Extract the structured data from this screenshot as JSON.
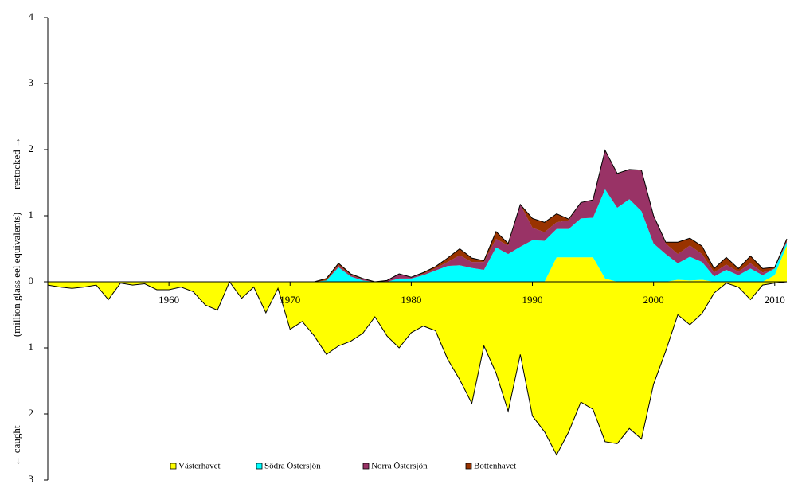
{
  "chart_data": {
    "type": "stacked-area",
    "ylabel": [
      "← caught",
      "(million glass eel equivalents)",
      "restocked →"
    ],
    "x": [
      1950,
      1951,
      1952,
      1953,
      1954,
      1955,
      1956,
      1957,
      1958,
      1959,
      1960,
      1961,
      1962,
      1963,
      1964,
      1965,
      1966,
      1967,
      1968,
      1969,
      1970,
      1971,
      1972,
      1973,
      1974,
      1975,
      1976,
      1977,
      1978,
      1979,
      1980,
      1981,
      1982,
      1983,
      1984,
      1985,
      1986,
      1987,
      1988,
      1989,
      1990,
      1991,
      1992,
      1993,
      1994,
      1995,
      1996,
      1997,
      1998,
      1999,
      2000,
      2001,
      2002,
      2003,
      2004,
      2005,
      2006,
      2007,
      2008,
      2009,
      2010,
      2011
    ],
    "xlim": [
      1950,
      2011
    ],
    "xticks": [
      1960,
      1970,
      1980,
      1990,
      2000,
      2010
    ],
    "ylim": [
      -3,
      4
    ],
    "yticks": [
      {
        "value": -3,
        "label": "3"
      },
      {
        "value": -2,
        "label": "2"
      },
      {
        "value": -1,
        "label": "1"
      },
      0,
      1,
      2,
      3,
      4
    ],
    "negative_tick_label_color": "#cc0000",
    "series": [
      {
        "name": "Västerhavet",
        "color": "#ffff00",
        "values": [
          0,
          0,
          0,
          0,
          0,
          0,
          0,
          0,
          0,
          0,
          0,
          0,
          0,
          0,
          0,
          0,
          0,
          0,
          0,
          0,
          0,
          0,
          0,
          0,
          0,
          0,
          0,
          0,
          0,
          0,
          0,
          0,
          0,
          0,
          0,
          0,
          0,
          0,
          0,
          0,
          0,
          0,
          0.37,
          0.37,
          0.37,
          0.37,
          0.05,
          0,
          0,
          0,
          0,
          0,
          0.03,
          0.02,
          0.03,
          0,
          0,
          0,
          0,
          0,
          0.1,
          0.55
        ]
      },
      {
        "name": "Södra Östersjön",
        "color": "#00ffff",
        "values": [
          0,
          0,
          0,
          0,
          0,
          0,
          0,
          0,
          0,
          0,
          0,
          0,
          0,
          0,
          0,
          0,
          0,
          0,
          0,
          0,
          0,
          0,
          0,
          0.02,
          0.22,
          0.08,
          0.02,
          0,
          0,
          0.05,
          0.05,
          0.1,
          0.17,
          0.24,
          0.25,
          0.21,
          0.18,
          0.52,
          0.42,
          0.53,
          0.63,
          0.62,
          0.43,
          0.43,
          0.59,
          0.6,
          1.35,
          1.12,
          1.25,
          1.07,
          0.58,
          0.42,
          0.25,
          0.36,
          0.27,
          0.08,
          0.18,
          0.1,
          0.2,
          0.1,
          0.1,
          0.05
        ]
      },
      {
        "name": "Norra Östersjön",
        "color": "#993366",
        "values": [
          0,
          0,
          0,
          0,
          0,
          0,
          0,
          0,
          0,
          0,
          0,
          0,
          0,
          0,
          0,
          0,
          0,
          0,
          0,
          0,
          0,
          0,
          0,
          0,
          0.03,
          0.02,
          0.02,
          0,
          0.02,
          0.07,
          0.02,
          0.02,
          0.03,
          0.06,
          0.15,
          0.09,
          0.12,
          0.13,
          0.13,
          0.64,
          0.19,
          0.13,
          0.1,
          0.13,
          0.24,
          0.26,
          0.58,
          0.51,
          0.45,
          0.61,
          0.42,
          0.16,
          0.14,
          0.17,
          0.12,
          0.06,
          0.08,
          0.05,
          0.08,
          0.04,
          0,
          0.02
        ]
      },
      {
        "name": "Bottenhavet",
        "color": "#993300",
        "values": [
          0,
          0,
          0,
          0,
          0,
          0,
          0,
          0,
          0,
          0,
          0,
          0,
          0,
          0,
          0,
          0,
          0,
          0,
          0,
          0,
          0,
          0,
          0,
          0.03,
          0.03,
          0.02,
          0.01,
          0,
          0,
          0,
          0,
          0.02,
          0.03,
          0.06,
          0.1,
          0.06,
          0.02,
          0.11,
          0.03,
          0,
          0.14,
          0.15,
          0.13,
          0.02,
          0,
          0.01,
          0.01,
          0.01,
          0,
          0.01,
          0,
          0.02,
          0.18,
          0.11,
          0.12,
          0.06,
          0.11,
          0.05,
          0.11,
          0.06,
          0.02,
          0.03
        ]
      }
    ],
    "caught": {
      "color": "#ffff00",
      "values": [
        -0.05,
        -0.08,
        -0.1,
        -0.08,
        -0.05,
        -0.27,
        -0.02,
        -0.05,
        -0.03,
        -0.12,
        -0.12,
        -0.08,
        -0.15,
        -0.35,
        -0.43,
        0,
        -0.25,
        -0.08,
        -0.47,
        -0.1,
        -0.72,
        -0.6,
        -0.82,
        -1.1,
        -0.97,
        -0.9,
        -0.78,
        -0.53,
        -0.82,
        -1.0,
        -0.77,
        -0.67,
        -0.74,
        -1.17,
        -1.48,
        -1.84,
        -0.97,
        -1.38,
        -1.96,
        -1.1,
        -2.03,
        -2.27,
        -2.62,
        -2.27,
        -1.82,
        -1.93,
        -2.42,
        -2.45,
        -2.22,
        -2.38,
        -1.55,
        -1.05,
        -0.5,
        -0.65,
        -0.48,
        -0.17,
        -0.02,
        -0.08,
        -0.27,
        -0.05,
        -0.02,
        0
      ]
    }
  }
}
